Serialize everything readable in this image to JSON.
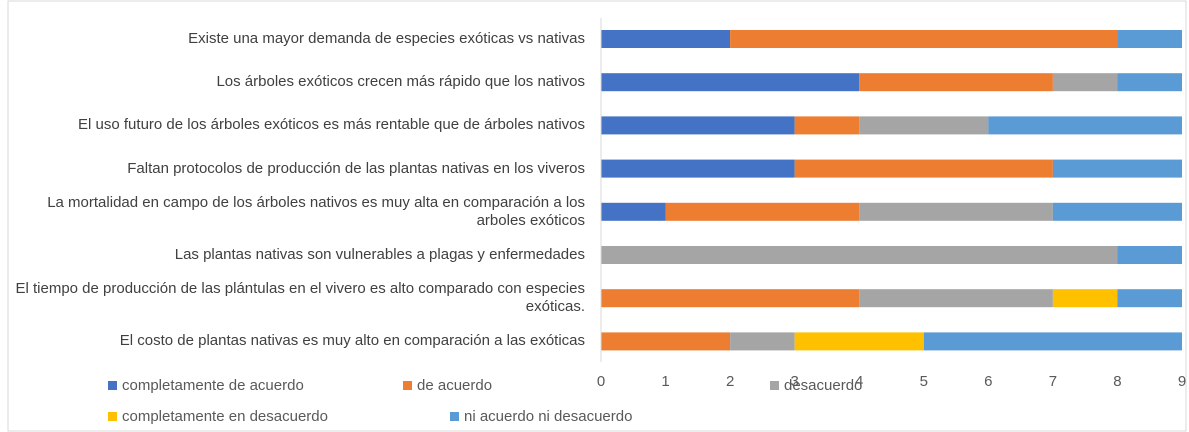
{
  "chart_data": {
    "type": "stacked_bar_horizontal",
    "categories": [
      "Existe una mayor demanda de especies exóticas vs nativas",
      "Los árboles exóticos crecen más rápido que los nativos",
      "El uso futuro de los árboles exóticos es más rentable que de árboles nativos",
      "Faltan protocolos de producción de las plantas nativas en los viveros",
      "La mortalidad en campo de los árboles nativos es muy alta en comparación a los arboles exóticos",
      "Las plantas nativas son vulnerables a plagas y enfermedades",
      "El tiempo de producción de las plántulas en el vivero es alto comparado con especies exóticas.",
      "El costo de plantas nativas es muy alto en comparación a las exóticas"
    ],
    "series": [
      {
        "name": "completamente de acuerdo",
        "color": "#4472c4",
        "values": [
          2,
          4,
          3,
          3,
          1,
          0,
          0,
          0
        ]
      },
      {
        "name": "de acuerdo",
        "color": "#ed7d31",
        "values": [
          6,
          3,
          1,
          4,
          3,
          0,
          4,
          2
        ]
      },
      {
        "name": "desacuerdo",
        "color": "#a5a5a5",
        "values": [
          0,
          1,
          2,
          0,
          3,
          8,
          3,
          1
        ]
      },
      {
        "name": "completamente en desacuerdo",
        "color": "#ffc000",
        "values": [
          0,
          0,
          0,
          0,
          0,
          0,
          1,
          2
        ]
      },
      {
        "name": "ni acuerdo ni desacuerdo",
        "color": "#5b9bd5",
        "values": [
          1,
          1,
          3,
          2,
          2,
          1,
          1,
          4
        ]
      }
    ],
    "xlim": [
      0,
      9
    ],
    "xticks": [
      0,
      1,
      2,
      3,
      4,
      5,
      6,
      7,
      8,
      9
    ],
    "legend": "bottom"
  }
}
